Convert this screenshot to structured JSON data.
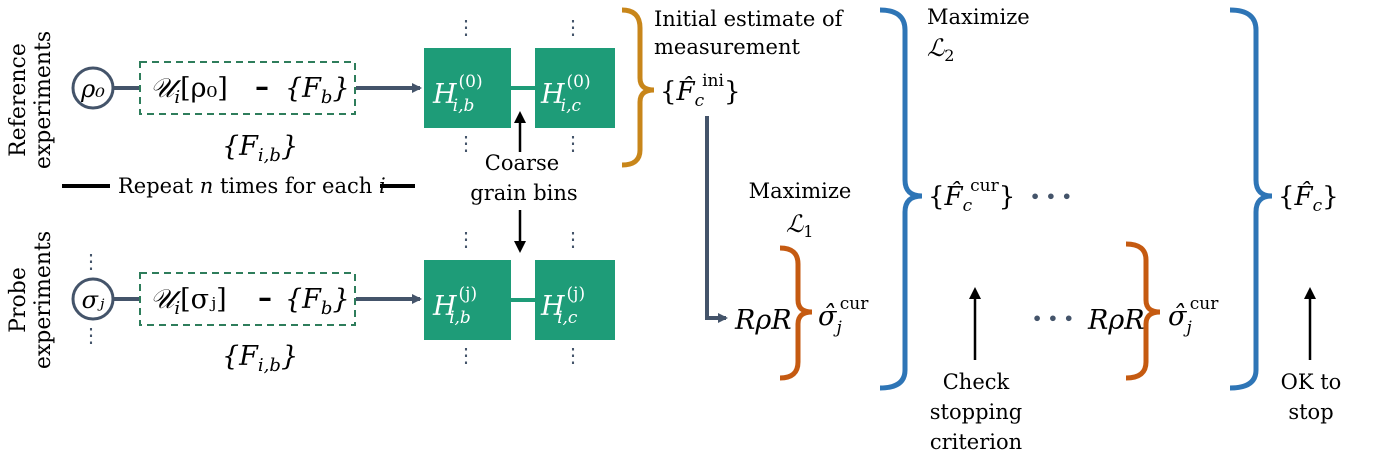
{
  "colors": {
    "slate": "#44546A",
    "teal": "#1E9C78",
    "dashed_green": "#2E7D5B",
    "gold": "#C8861A",
    "blue": "#2E75B6",
    "rust": "#C55A11",
    "text": "#000000"
  },
  "rows": {
    "reference_label_line1": "Reference",
    "reference_label_line2": "experiments",
    "probe_label_line1": "Probe",
    "probe_label_line2": "experiments"
  },
  "states": {
    "rho0": "ρ₀",
    "sigma_j": "σⱼ"
  },
  "reference": {
    "unitary_U": "𝒰",
    "unitary_sub": "i",
    "unitary_arg": "[ρ₀]",
    "dash": "–",
    "Fb": "{F",
    "Fb_sub": "b",
    "Fb_close": "}",
    "Fib": "{F",
    "Fib_sub": "i,b",
    "Fib_close": "}"
  },
  "probe": {
    "unitary_U": "𝒰",
    "unitary_sub": "i",
    "unitary_arg": "[σⱼ]",
    "dash": "–",
    "Fb": "{F",
    "Fb_sub": "b",
    "Fb_close": "}",
    "Fib": "{F",
    "Fib_sub": "i,b",
    "Fib_close": "}"
  },
  "histograms": {
    "H": "H",
    "ref_sup": "(0)",
    "probe_sup": "(j)",
    "sub_b": "i,b",
    "sub_c": "i,c",
    "ellipsis_v": "⋮"
  },
  "repeat_text_prefix": "Repeat ",
  "repeat_text_n": "n",
  "repeat_text_mid": " times for each ",
  "repeat_text_i": "i",
  "coarse_line1": "Coarse",
  "coarse_line2": "grain bins",
  "initial_line1": "Initial estimate of",
  "initial_line2": "measurement",
  "F_ini": {
    "open": "{",
    "F": "F̂",
    "sub": "c",
    "sup": "ini",
    "close": "}"
  },
  "maximize_L1": {
    "word": "Maximize",
    "L": "ℒ",
    "sub": "1"
  },
  "maximize_L2": {
    "word": "Maximize",
    "L": "ℒ",
    "sub": "2"
  },
  "RrhoR": "RρR",
  "sigma_cur": {
    "sym": "σ̂",
    "sub": "j",
    "sup": "cur"
  },
  "F_cur": {
    "open": "{",
    "F": "F̂",
    "sub": "c",
    "sup": "cur",
    "close": "}"
  },
  "dots_h": "• • •",
  "F_final": {
    "open": "{",
    "F": "F̂",
    "sub": "c",
    "close": "}"
  },
  "check_line1": "Check",
  "check_line2": "stopping",
  "check_line3": "criterion",
  "ok_line1": "OK to",
  "ok_line2": "stop"
}
